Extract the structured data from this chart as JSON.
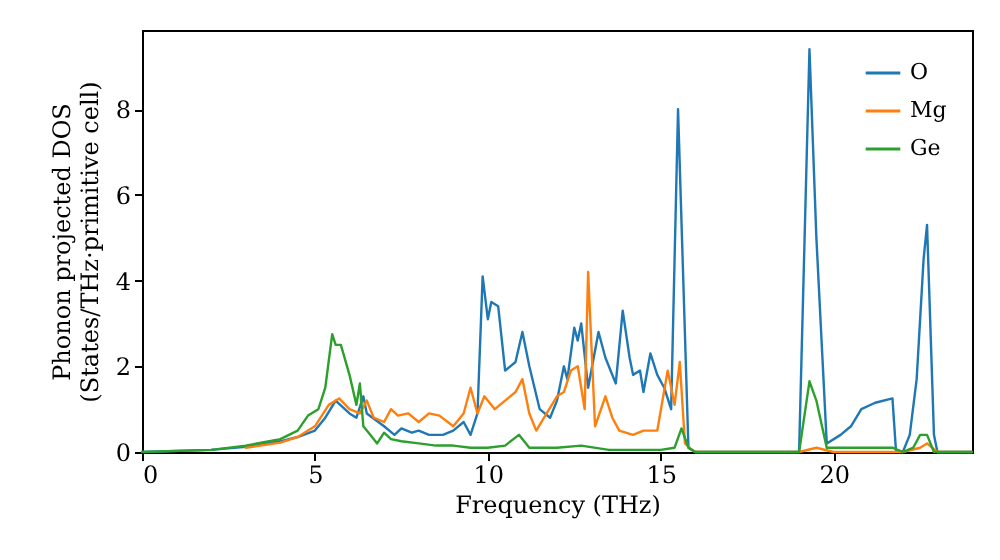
{
  "chart_data": {
    "type": "line",
    "xlabel": "Frequency (THz)",
    "ylabel": "Phonon projected DOS\n(States/THz·primitive cell)",
    "xlim": [
      0,
      24
    ],
    "xticks": [
      0,
      5,
      10,
      15,
      20
    ],
    "ylim": [
      0,
      9.85
    ],
    "yticks": [
      0,
      2,
      4,
      6,
      8
    ],
    "grid": false,
    "legend": "top right",
    "marker": "none",
    "line_style": "solid",
    "series": [
      {
        "name": "O",
        "color": "#1f77b4",
        "x": [
          0,
          2,
          3,
          4,
          4.5,
          5,
          5.3,
          5.6,
          6,
          6.2,
          6.4,
          6.5,
          7,
          7.3,
          7.5,
          7.8,
          8,
          8.3,
          8.7,
          9,
          9.3,
          9.5,
          9.7,
          9.85,
          10,
          10.1,
          10.3,
          10.5,
          10.8,
          11,
          11.2,
          11.5,
          11.8,
          12,
          12.2,
          12.3,
          12.5,
          12.6,
          12.7,
          12.9,
          13.2,
          13.4,
          13.7,
          13.9,
          14.1,
          14.2,
          14.4,
          14.5,
          14.7,
          14.9,
          15.1,
          15.3,
          15.5,
          15.8,
          16,
          19,
          19.3,
          19.5,
          19.8,
          20.2,
          20.5,
          20.8,
          21.2,
          21.7,
          21.8,
          22,
          22.2,
          22.4,
          22.6,
          22.7,
          22.9,
          23,
          24
        ],
        "values": [
          0,
          0.05,
          0.12,
          0.25,
          0.35,
          0.5,
          0.8,
          1.2,
          0.9,
          0.8,
          1.3,
          0.9,
          0.6,
          0.4,
          0.55,
          0.45,
          0.5,
          0.4,
          0.4,
          0.5,
          0.7,
          0.4,
          0.9,
          4.1,
          3.1,
          3.5,
          3.4,
          1.9,
          2.1,
          2.8,
          2.0,
          1.0,
          0.8,
          1.2,
          2.0,
          1.7,
          2.9,
          2.6,
          3.0,
          1.5,
          2.8,
          2.2,
          1.6,
          3.3,
          2.2,
          1.8,
          1.9,
          1.4,
          2.3,
          1.8,
          1.5,
          1.0,
          8.0,
          0.1,
          0,
          0,
          9.4,
          5,
          0.2,
          0.4,
          0.6,
          1.0,
          1.15,
          1.25,
          0.05,
          0,
          0.4,
          1.7,
          4.5,
          5.3,
          0.4,
          0,
          0
        ]
      },
      {
        "name": "Mg",
        "color": "#ff7f0e",
        "x": [
          3,
          4,
          4.5,
          5,
          5.4,
          5.7,
          6,
          6.3,
          6.5,
          6.7,
          7,
          7.2,
          7.4,
          7.7,
          8,
          8.3,
          8.6,
          9,
          9.3,
          9.5,
          9.7,
          9.9,
          10.2,
          10.5,
          10.8,
          11,
          11.2,
          11.4,
          11.7,
          12,
          12.2,
          12.4,
          12.6,
          12.8,
          12.9,
          13.1,
          13.4,
          13.6,
          13.8,
          14.2,
          14.5,
          14.9,
          15.2,
          15.4,
          15.55,
          15.7,
          15.9,
          16,
          19,
          19.5,
          20,
          22,
          22.5,
          22.7,
          23,
          24
        ],
        "values": [
          0.1,
          0.22,
          0.35,
          0.6,
          1.1,
          1.25,
          1.0,
          0.9,
          1.2,
          0.8,
          0.7,
          1.0,
          0.85,
          0.9,
          0.7,
          0.9,
          0.85,
          0.6,
          0.9,
          1.5,
          0.9,
          1.3,
          1.0,
          1.2,
          1.4,
          1.7,
          0.9,
          0.5,
          0.9,
          1.3,
          1.4,
          1.9,
          2.0,
          1.0,
          4.2,
          0.6,
          1.3,
          0.8,
          0.5,
          0.4,
          0.5,
          0.5,
          1.9,
          1.1,
          2.1,
          0.2,
          0.05,
          0,
          0,
          0.1,
          0,
          0,
          0.1,
          0.2,
          0,
          0
        ]
      },
      {
        "name": "Ge",
        "color": "#2ca02c",
        "x": [
          0,
          2,
          3,
          4,
          4.5,
          4.8,
          5.1,
          5.3,
          5.5,
          5.6,
          5.75,
          6,
          6.2,
          6.3,
          6.4,
          6.6,
          6.8,
          7,
          7.2,
          7.5,
          8,
          8.5,
          9,
          9.5,
          10,
          10.5,
          10.9,
          11.2,
          12,
          12.7,
          13.5,
          15,
          15.4,
          15.6,
          15.8,
          16,
          19,
          19.3,
          19.5,
          19.8,
          20.5,
          21.7,
          22,
          22.3,
          22.5,
          22.7,
          22.9,
          24
        ],
        "values": [
          0,
          0.05,
          0.15,
          0.3,
          0.5,
          0.85,
          1.0,
          1.5,
          2.75,
          2.5,
          2.5,
          1.8,
          1.1,
          1.6,
          0.6,
          0.4,
          0.2,
          0.45,
          0.3,
          0.25,
          0.2,
          0.15,
          0.15,
          0.1,
          0.1,
          0.15,
          0.4,
          0.1,
          0.1,
          0.15,
          0.05,
          0.05,
          0.1,
          0.55,
          0.1,
          0,
          0,
          1.65,
          1.2,
          0.1,
          0.1,
          0.1,
          0,
          0.1,
          0.4,
          0.4,
          0,
          0
        ]
      }
    ]
  }
}
